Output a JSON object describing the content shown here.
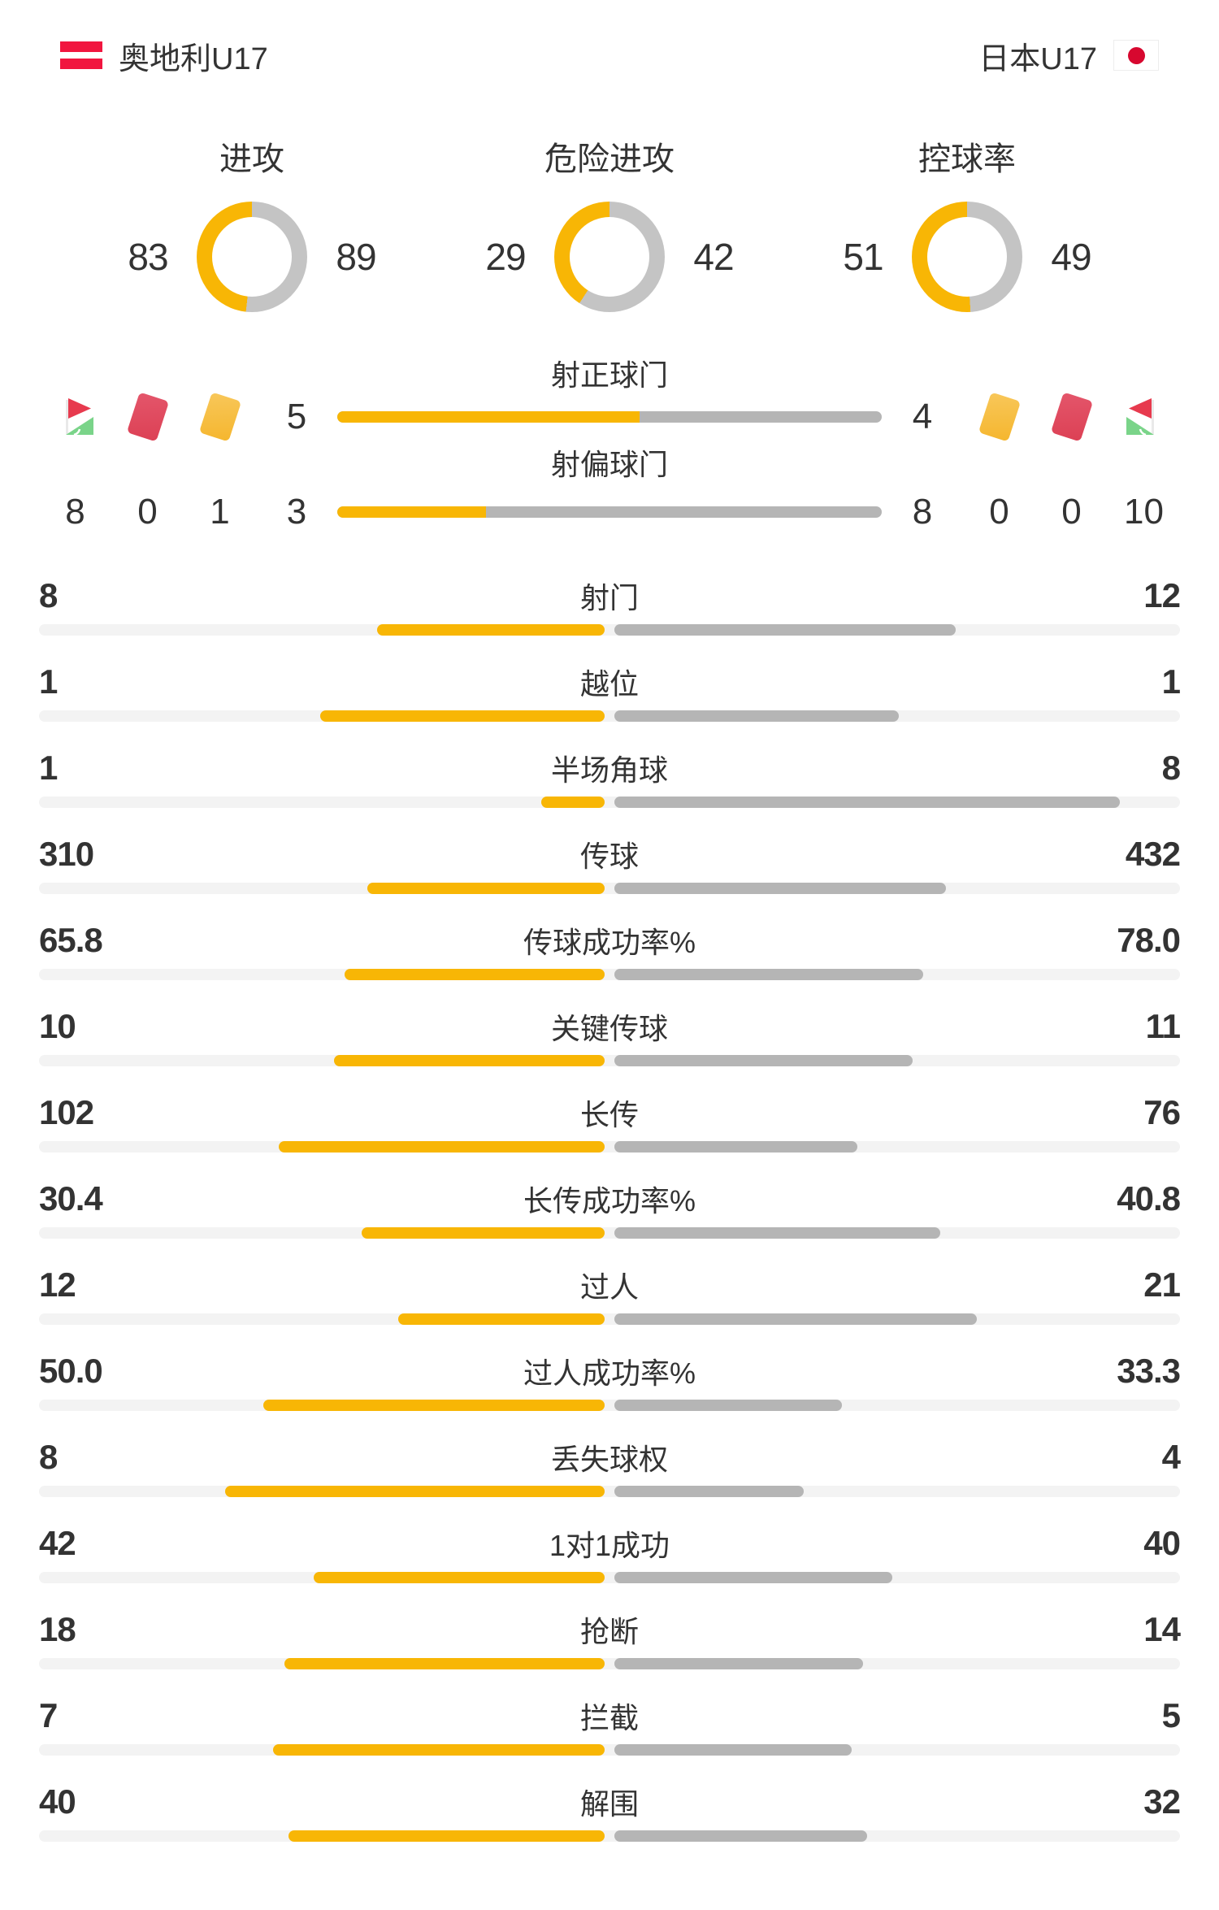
{
  "header": {
    "home": {
      "name": "奥地利U17"
    },
    "away": {
      "name": "日本U17"
    }
  },
  "colors": {
    "yellow": "#F8B605",
    "donut_gray": "#C4C4C4",
    "bar_gray": "#B5B5B5",
    "track": "#F3F3F3",
    "text": "#333333",
    "austria_red": "#F1163F",
    "japan_red": "#D7082F",
    "card_red_a": "#E4566B",
    "card_red_b": "#DC4054",
    "card_yellow_a": "#F8C75A",
    "card_yellow_b": "#F5B62E",
    "flag_red": "#E73A4E",
    "flag_green": "#7AD489",
    "pole": "#E9E9E9"
  },
  "donuts": [
    {
      "label": "进攻",
      "home": "83",
      "away": "89"
    },
    {
      "label": "危险进攻",
      "home": "29",
      "away": "42"
    },
    {
      "label": "控球率",
      "home": "51",
      "away": "49"
    }
  ],
  "shots_on_target": {
    "label": "射正球门",
    "home": "5",
    "away": "4"
  },
  "shots_off_target": {
    "label": "射偏球门",
    "home": "3",
    "away": "8"
  },
  "discipline": {
    "home_icons": [
      "corner-flag-icon",
      "red-card-icon",
      "yellow-card-icon"
    ],
    "home_values": [
      "8",
      "0",
      "1"
    ],
    "away_icons": [
      "yellow-card-icon",
      "red-card-icon",
      "corner-flag-icon"
    ],
    "away_values": [
      "0",
      "0",
      "10"
    ]
  },
  "stats": [
    {
      "label": "射门",
      "home": "8",
      "away": "12"
    },
    {
      "label": "越位",
      "home": "1",
      "away": "1"
    },
    {
      "label": "半场角球",
      "home": "1",
      "away": "8"
    },
    {
      "label": "传球",
      "home": "310",
      "away": "432"
    },
    {
      "label": "传球成功率%",
      "home": "65.8",
      "away": "78.0"
    },
    {
      "label": "关键传球",
      "home": "10",
      "away": "11"
    },
    {
      "label": "长传",
      "home": "102",
      "away": "76"
    },
    {
      "label": "长传成功率%",
      "home": "30.4",
      "away": "40.8"
    },
    {
      "label": "过人",
      "home": "12",
      "away": "21"
    },
    {
      "label": "过人成功率%",
      "home": "50.0",
      "away": "33.3"
    },
    {
      "label": "丢失球权",
      "home": "8",
      "away": "4"
    },
    {
      "label": "1对1成功",
      "home": "42",
      "away": "40"
    },
    {
      "label": "抢断",
      "home": "18",
      "away": "14"
    },
    {
      "label": "拦截",
      "home": "7",
      "away": "5"
    },
    {
      "label": "解围",
      "home": "40",
      "away": "32"
    }
  ],
  "chart_data": [
    {
      "type": "pie",
      "variant": "donut-half-split",
      "title": "进攻",
      "series": [
        {
          "name": "奥地利U17",
          "value": 83
        },
        {
          "name": "日本U17",
          "value": 89
        }
      ]
    },
    {
      "type": "pie",
      "variant": "donut-half-split",
      "title": "危险进攻",
      "series": [
        {
          "name": "奥地利U17",
          "value": 29
        },
        {
          "name": "日本U17",
          "value": 42
        }
      ]
    },
    {
      "type": "pie",
      "variant": "donut-half-split",
      "title": "控球率",
      "series": [
        {
          "name": "奥地利U17",
          "value": 51
        },
        {
          "name": "日本U17",
          "value": 49
        }
      ]
    },
    {
      "type": "bar",
      "variant": "bidirectional-comparison",
      "title": "比赛技术统计",
      "categories": [
        "射正球门",
        "射偏球门",
        "射门",
        "越位",
        "半场角球",
        "传球",
        "传球成功率%",
        "关键传球",
        "长传",
        "长传成功率%",
        "过人",
        "过人成功率%",
        "丢失球权",
        "1对1成功",
        "抢断",
        "拦截",
        "解围"
      ],
      "series": [
        {
          "name": "奥地利U17",
          "values": [
            5,
            3,
            8,
            1,
            1,
            310,
            65.8,
            10,
            102,
            30.4,
            12,
            50.0,
            8,
            42,
            18,
            7,
            40
          ]
        },
        {
          "name": "日本U17",
          "values": [
            4,
            8,
            12,
            1,
            8,
            432,
            78.0,
            11,
            76,
            40.8,
            21,
            33.3,
            4,
            40,
            14,
            5,
            32
          ]
        }
      ],
      "legend_position": "none",
      "grid": false
    },
    {
      "type": "table",
      "title": "纪律与角球",
      "categories": [
        "角球",
        "红牌",
        "黄牌"
      ],
      "series": [
        {
          "name": "奥地利U17",
          "values": [
            8,
            0,
            1
          ]
        },
        {
          "name": "日本U17",
          "values": [
            10,
            0,
            0
          ]
        }
      ]
    }
  ]
}
